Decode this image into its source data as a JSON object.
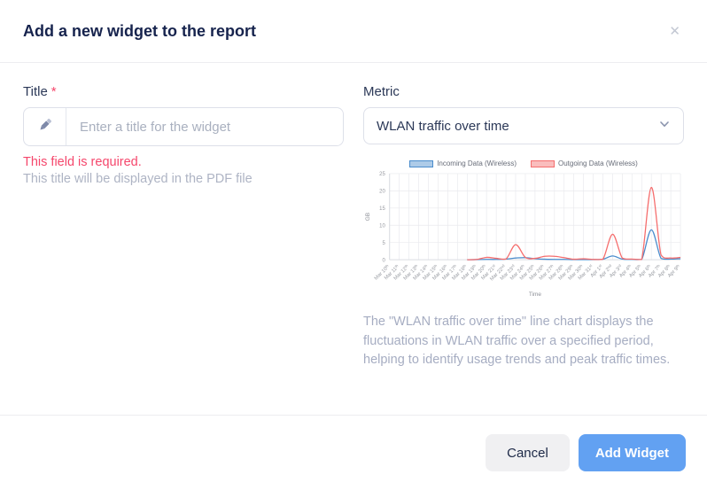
{
  "modal": {
    "title": "Add a new widget to the report",
    "close_glyph": "✕"
  },
  "form": {
    "title_field": {
      "label": "Title",
      "required_marker": "*",
      "value": "",
      "placeholder": "Enter a title for the widget",
      "error": "This field is required.",
      "helper": "This title will be displayed in the PDF file"
    },
    "metric_field": {
      "label": "Metric",
      "selected": "WLAN traffic over time"
    }
  },
  "description": "The \"WLAN traffic over time\" line chart displays the fluctuations in WLAN traffic over a specified period, helping to identify usage trends and peak traffic times.",
  "footer": {
    "cancel_label": "Cancel",
    "submit_label": "Add Widget"
  },
  "colors": {
    "accent_blue": "#62a1f2",
    "error_red": "#f5476c",
    "incoming_blue": "#4a8ccc",
    "outgoing_red": "#f56d6d"
  },
  "chart_data": {
    "type": "line",
    "title": "",
    "xlabel": "Time",
    "ylabel": "GB",
    "ylim": [
      0,
      25
    ],
    "yticks": [
      0,
      5,
      10,
      15,
      20,
      25
    ],
    "grid": true,
    "legend_position": "top",
    "categories": [
      "Mar 10th",
      "Mar 11th",
      "Mar 12th",
      "Mar 13th",
      "Mar 14th",
      "Mar 15th",
      "Mar 16th",
      "Mar 17th",
      "Mar 18th",
      "Mar 19th",
      "Mar 20th",
      "Mar 21st",
      "Mar 22nd",
      "Mar 23rd",
      "Mar 24th",
      "Mar 25th",
      "Mar 26th",
      "Mar 27th",
      "Mar 28th",
      "Mar 29th",
      "Mar 30th",
      "Mar 31st",
      "Apr 1st",
      "Apr 2nd",
      "Apr 3rd",
      "Apr 4th",
      "Apr 5th",
      "Apr 6th",
      "Apr 7th",
      "Apr 8th",
      "Apr 9th"
    ],
    "series": [
      {
        "name": "Incoming Data (Wireless)",
        "color": "#4a8ccc",
        "values": [
          null,
          null,
          null,
          null,
          null,
          null,
          null,
          null,
          0,
          0.05,
          0.1,
          0.1,
          0.2,
          0.5,
          0.6,
          0.3,
          0.15,
          0.1,
          0.1,
          0.05,
          0.05,
          0.05,
          0.15,
          1.1,
          0.2,
          0.1,
          0.1,
          8.7,
          0.4,
          0.2,
          0.3
        ]
      },
      {
        "name": "Outgoing Data (Wireless)",
        "color": "#f56d6d",
        "values": [
          null,
          null,
          null,
          null,
          null,
          null,
          null,
          null,
          0,
          0.1,
          0.7,
          0.4,
          0.2,
          4.4,
          0.7,
          0.4,
          1.0,
          1.0,
          0.6,
          0.15,
          0.3,
          0.1,
          0.15,
          7.4,
          0.5,
          0.2,
          0.1,
          21,
          1.4,
          0.5,
          0.7
        ]
      }
    ]
  }
}
